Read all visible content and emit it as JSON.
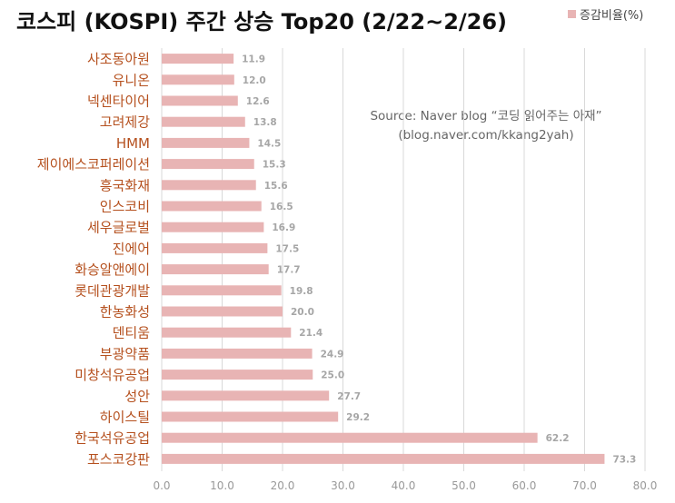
{
  "chart_data": {
    "type": "bar",
    "orientation": "horizontal",
    "title": "코스피 (KOSPI) 주간 상승 Top20 (2/22~2/26)",
    "categories": [
      "사조동아원",
      "유니온",
      "넥센타이어",
      "고려제강",
      "HMM",
      "제이에스코퍼레이션",
      "흥국화재",
      "인스코비",
      "세우글로벌",
      "진에어",
      "화승알앤에이",
      "롯데관광개발",
      "한농화성",
      "덴티움",
      "부광약품",
      "미창석유공업",
      "성안",
      "하이스틸",
      "한국석유공업",
      "포스코강판"
    ],
    "series": [
      {
        "name": "증감비율(%)",
        "values": [
          11.9,
          12.0,
          12.6,
          13.8,
          14.5,
          15.3,
          15.6,
          16.5,
          16.9,
          17.5,
          17.7,
          19.8,
          20.0,
          21.4,
          24.9,
          25.0,
          27.7,
          29.2,
          62.2,
          73.3
        ]
      }
    ],
    "xlim": [
      0,
      80
    ],
    "x_ticks": [
      "0.0",
      "10.0",
      "20.0",
      "30.0",
      "40.0",
      "50.0",
      "60.0",
      "70.0",
      "80.0"
    ],
    "grid": "vertical",
    "legend_position": "top-right",
    "bar_color": "#e8b4b4",
    "category_label_color": "#b5501e",
    "annotation": {
      "line1": "Source: Naver blog “코딩 읽어주는 아재”",
      "line2": "(blog.naver.com/kkang2yah)"
    }
  }
}
